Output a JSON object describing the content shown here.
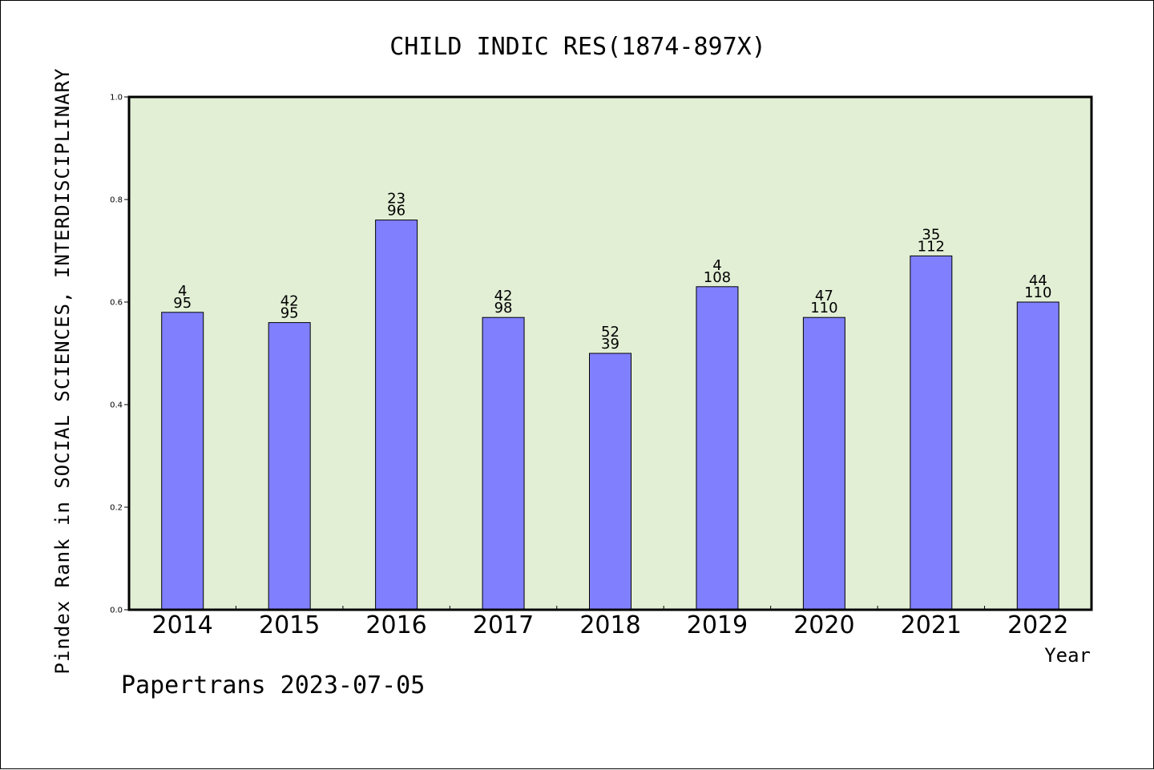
{
  "chart_data": {
    "type": "bar",
    "title": "CHILD INDIC RES(1874-897X)",
    "xlabel": "Year",
    "ylabel": "Pindex Rank in SOCIAL SCIENCES, INTERDISCIPLINARY",
    "ylim": [
      0,
      1.0
    ],
    "yticks": [
      "0.0",
      "0.2",
      "0.4",
      "0.6",
      "0.8",
      "1.0"
    ],
    "categories": [
      "2014",
      "2015",
      "2016",
      "2017",
      "2018",
      "2019",
      "2020",
      "2021",
      "2022"
    ],
    "values": [
      0.58,
      0.56,
      0.76,
      0.57,
      0.5,
      0.63,
      0.57,
      0.69,
      0.6
    ],
    "labels_top": [
      "4",
      "42",
      "23",
      "42",
      "52",
      "4",
      "47",
      "35",
      "44"
    ],
    "labels_bottom": [
      "95",
      "95",
      "96",
      "98",
      "39",
      "108",
      "110",
      "112",
      "110"
    ],
    "grid": false,
    "colors": {
      "plot_background": "#e2efd5",
      "bar_fill": "#8080ff",
      "bar_stroke": "#000000"
    }
  },
  "footer": "Papertrans 2023-07-05"
}
